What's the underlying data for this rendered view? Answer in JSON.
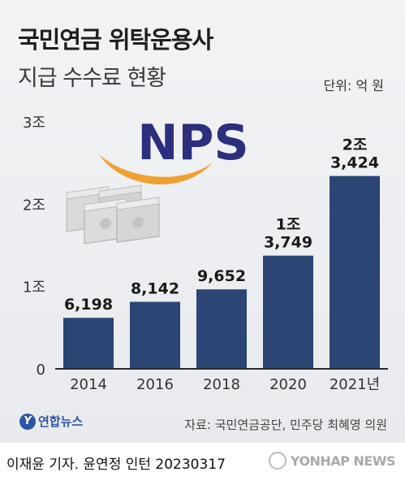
{
  "header": {
    "title_line1": "국민연금 위탁운용사",
    "title_line2": "지급 수수료 현황",
    "unit": "단위: 억 원"
  },
  "logo": {
    "text": "NPS",
    "color": "#2b2f7e",
    "swoosh_color": "#f0a030"
  },
  "colors": {
    "bar": "#2b4574",
    "axis": "#2b2b2b",
    "background": "#eceef1"
  },
  "chart_data": {
    "type": "bar",
    "categories": [
      "2014",
      "2016",
      "2018",
      "2020",
      "2021년"
    ],
    "values": [
      6198,
      8142,
      9652,
      13749,
      23424
    ],
    "value_labels": [
      [
        "6,198"
      ],
      [
        "8,142"
      ],
      [
        "9,652"
      ],
      [
        "1조",
        "3,749"
      ],
      [
        "2조",
        "3,424"
      ]
    ],
    "unit": "억 원",
    "ylim": [
      0,
      30000
    ],
    "yticks": [
      0,
      10000,
      20000,
      30000
    ],
    "ytick_labels": [
      "0",
      "1조",
      "2조",
      "3조"
    ],
    "grid": false
  },
  "footer": {
    "agency_mark": "Y",
    "agency_name": "연합뉴스",
    "source": "자료: 국민연금공단, 민주당 최혜영 의원",
    "credit": "이재윤 기자. 윤연정 인턴  20230317",
    "watermark": "YONHAP NEWS"
  }
}
